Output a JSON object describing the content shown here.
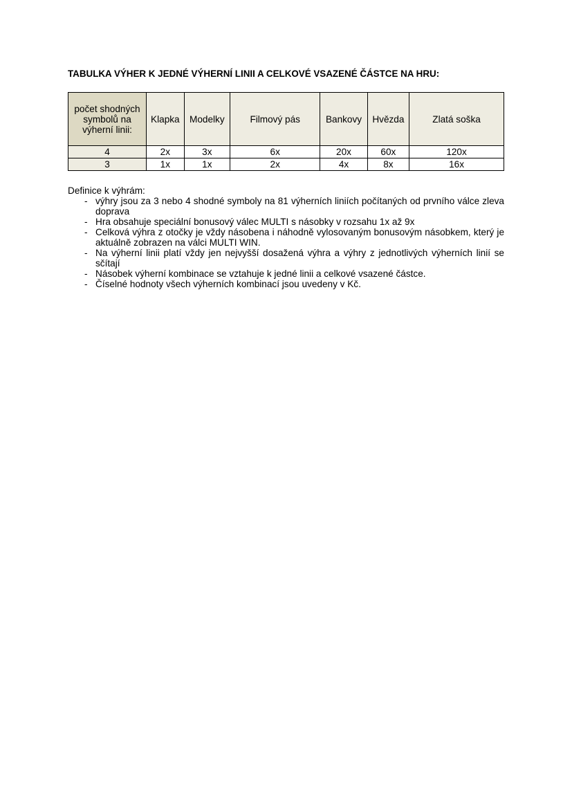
{
  "title": "TABULKA VÝHER K JEDNÉ VÝHERNÍ LINII A CELKOVÉ VSAZENÉ ČÁSTCE NA HRU:",
  "table": {
    "headers": [
      "počet shodných symbolů na výherní linii:",
      "Klapka",
      "Modelky",
      "Filmový pás",
      "Bankovy",
      "Hvězda",
      "Zlatá soška"
    ],
    "rows": [
      [
        "4",
        "2x",
        "3x",
        "6x",
        "20x",
        "60x",
        "120x"
      ],
      [
        "3",
        "1x",
        "1x",
        "2x",
        "4x",
        "8x",
        "16x"
      ]
    ]
  },
  "definitions": {
    "heading": "Definice k výhrám:",
    "bullet": "-",
    "items": [
      "výhry jsou za 3 nebo 4 shodné symboly na 81 výherních liniích počítaných od prvního válce zleva doprava",
      "Hra obsahuje speciální bonusový válec MULTI s násobky v rozsahu 1x až 9x",
      "Celková výhra z otočky je vždy násobena i náhodně vylosovaným bonusovým násobkem, který je aktuálně zobrazen na válci MULTI WIN.",
      "Na výherní linii platí vždy jen nejvyšší dosažená výhra a výhry z jednotlivých výherních linií se sčítají",
      "Násobek výherní kombinace se vztahuje k jedné linii a celkové vsazené částce.",
      "Číselné hodnoty všech výherních kombinací jsou uvedeny v Kč."
    ]
  }
}
